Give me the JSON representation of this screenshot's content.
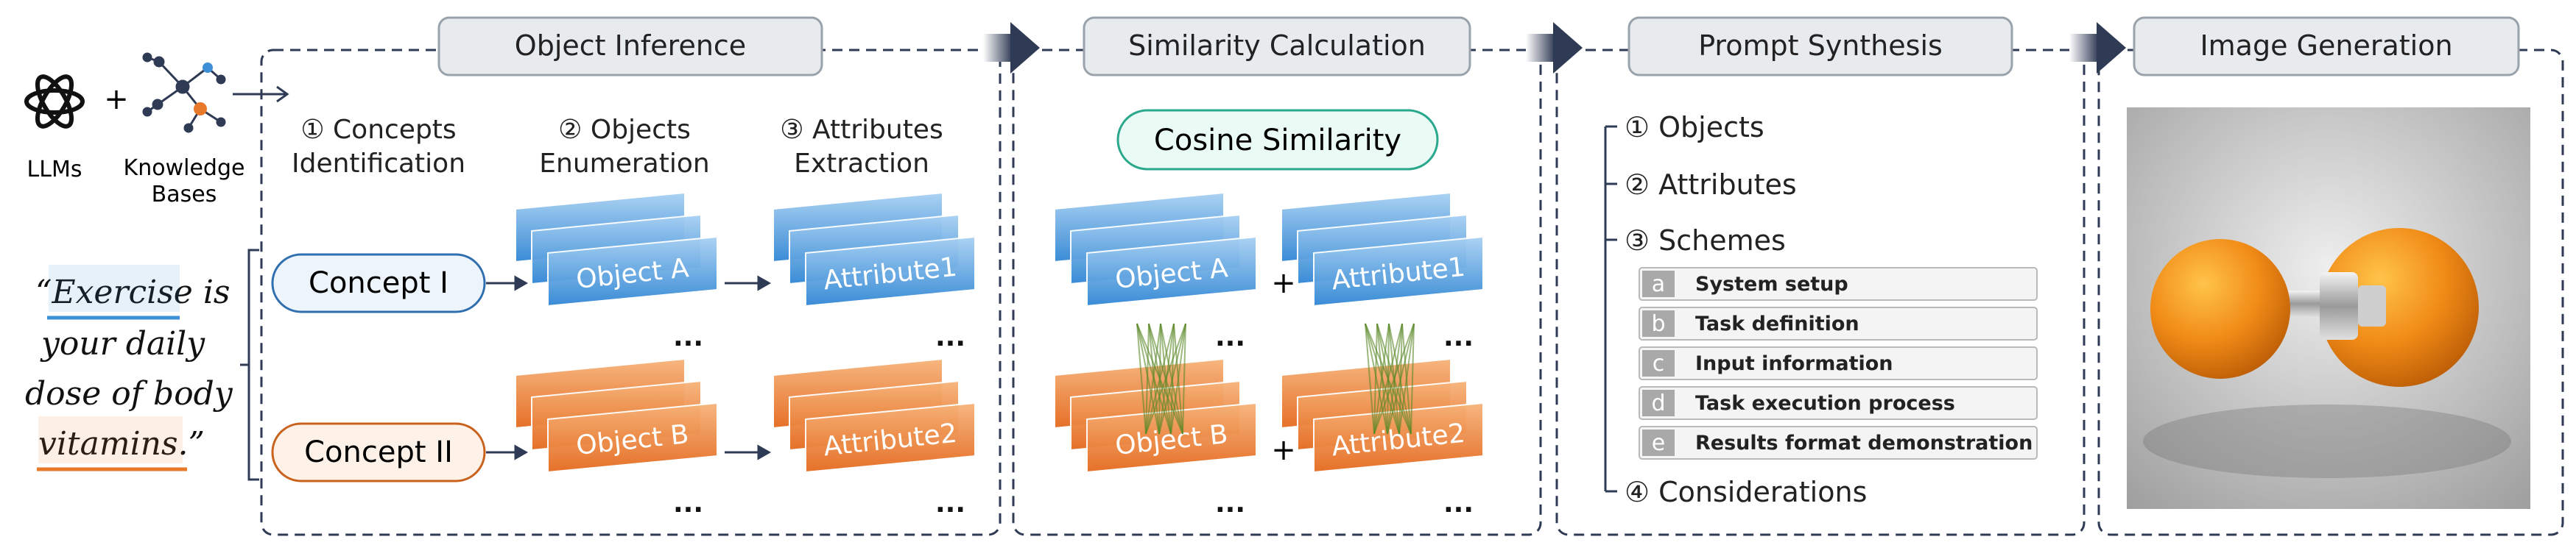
{
  "left": {
    "llm_label": "LLMs",
    "kb_label_1": "Knowledge",
    "kb_label_2": "Bases",
    "plus": "+",
    "quote_lines": [
      "“Exercise is",
      "your daily",
      "dose of body",
      "vitamins.”"
    ]
  },
  "stages": {
    "object_inference": "Object Inference",
    "similarity_calculation": "Similarity Calculation",
    "prompt_synthesis": "Prompt Synthesis",
    "image_generation": "Image Generation"
  },
  "object_inference": {
    "step1_line1": "① Concepts",
    "step1_line2": "Identification",
    "step2_line1": "② Objects",
    "step2_line2": "Enumeration",
    "step3_line1": "③ Attributes",
    "step3_line2": "Extraction",
    "concept1": "Concept I",
    "concept2": "Concept II",
    "object_a": "Object A",
    "object_b": "Object B",
    "attribute1": "Attribute1",
    "attribute2": "Attribute2",
    "ellipsis": "..."
  },
  "similarity": {
    "cosine_label": "Cosine Similarity",
    "object_a": "Object A",
    "object_b": "Object B",
    "attribute1": "Attribute1",
    "attribute2": "Attribute2",
    "plus": "+",
    "ellipsis": "..."
  },
  "prompt_synthesis": {
    "items": [
      "① Objects",
      "② Attributes",
      "③ Schemes",
      "④ Considerations"
    ],
    "schemes": [
      {
        "letter": "a",
        "label": "System setup"
      },
      {
        "letter": "b",
        "label": "Task definition"
      },
      {
        "letter": "c",
        "label": "Input information"
      },
      {
        "letter": "d",
        "label": "Task execution process"
      },
      {
        "letter": "e",
        "label": "Results format demonstration"
      }
    ]
  },
  "colors": {
    "blue": "#3d8fd6",
    "orange": "#e8792a",
    "teal": "#2aa88c",
    "navy": "#2f3a55",
    "panel_fill": "#e8ebee",
    "panel_stroke": "#9aa3ab"
  }
}
